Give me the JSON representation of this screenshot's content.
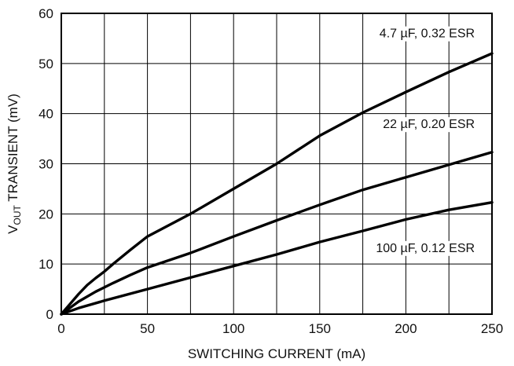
{
  "chart_data": {
    "type": "line",
    "xlabel": "SWITCHING CURRENT (mA)",
    "ylabel_main": "V",
    "ylabel_sub": "OUT",
    "ylabel_rest": " TRANSIENT (mV)",
    "xlim": [
      0,
      250
    ],
    "ylim": [
      0,
      60
    ],
    "x_ticks": [
      "0",
      "50",
      "100",
      "150",
      "200",
      "250"
    ],
    "y_ticks": [
      "0",
      "10",
      "20",
      "30",
      "40",
      "50",
      "60"
    ],
    "grid": true,
    "series": [
      {
        "name": "4.7 µF, 0.32 ESR",
        "x": [
          0,
          5,
          10,
          15,
          20,
          25,
          30,
          40,
          50,
          75,
          100,
          125,
          150,
          175,
          200,
          225,
          250
        ],
        "y": [
          0,
          2,
          4,
          5.8,
          7.2,
          8.5,
          10,
          12.8,
          15.5,
          20,
          25,
          30,
          35.6,
          40.2,
          44.3,
          48.3,
          52
        ]
      },
      {
        "name": "22 µF, 0.20 ESR",
        "x": [
          0,
          10,
          20,
          30,
          40,
          50,
          75,
          100,
          125,
          150,
          175,
          200,
          225,
          250
        ],
        "y": [
          0,
          2.5,
          4.5,
          6.2,
          7.8,
          9.3,
          12.2,
          15.5,
          18.7,
          21.8,
          24.8,
          27.3,
          29.8,
          32.3
        ]
      },
      {
        "name": "100 µF, 0.12 ESR",
        "x": [
          0,
          10,
          25,
          50,
          75,
          100,
          125,
          150,
          175,
          200,
          225,
          250
        ],
        "y": [
          0,
          1.2,
          2.7,
          5,
          7.3,
          9.6,
          11.9,
          14.4,
          16.6,
          18.9,
          20.8,
          22.3
        ]
      }
    ]
  }
}
